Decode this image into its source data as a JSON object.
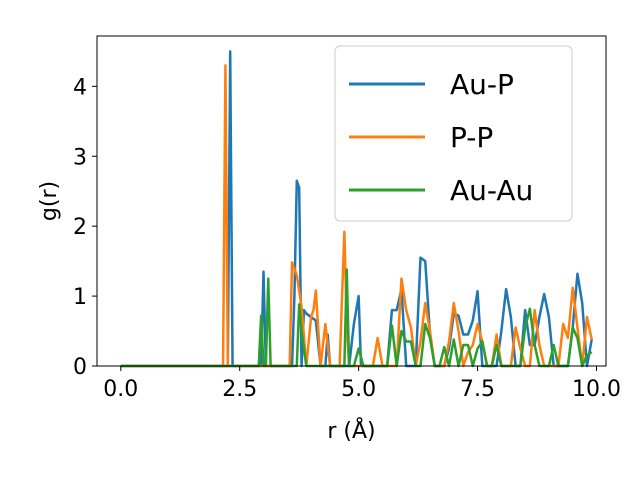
{
  "chart_data": {
    "type": "line",
    "xlabel": "r (Å)",
    "ylabel": "g(r)",
    "xlim": [
      -0.5,
      10.2
    ],
    "ylim": [
      0,
      4.72
    ],
    "xticks": [
      0.0,
      2.5,
      5.0,
      7.5,
      10.0
    ],
    "xtick_labels": [
      "0.0",
      "2.5",
      "5.0",
      "7.5",
      "10.0"
    ],
    "yticks": [
      0,
      1,
      2,
      3,
      4
    ],
    "ytick_labels": [
      "0",
      "1",
      "2",
      "3",
      "4"
    ],
    "grid": false,
    "legend_position": "top-right",
    "series": [
      {
        "name": "Au-P",
        "color": "#1f77b4",
        "x": [
          0.0,
          2.15,
          2.2,
          2.25,
          2.3,
          2.35,
          2.4,
          2.95,
          3.0,
          3.05,
          3.1,
          3.5,
          3.6,
          3.65,
          3.7,
          3.75,
          3.8,
          3.85,
          3.9,
          4.0,
          4.1,
          4.2,
          4.3,
          4.35,
          4.4,
          4.5,
          4.6,
          4.7,
          4.8,
          4.9,
          5.0,
          5.05,
          5.1,
          5.5,
          5.6,
          5.7,
          5.75,
          5.8,
          5.9,
          6.0,
          6.05,
          6.1,
          6.2,
          6.3,
          6.4,
          6.5,
          6.6,
          6.7,
          6.8,
          6.9,
          7.0,
          7.1,
          7.2,
          7.3,
          7.4,
          7.5,
          7.6,
          7.7,
          7.8,
          7.9,
          8.0,
          8.1,
          8.2,
          8.3,
          8.4,
          8.5,
          8.6,
          8.7,
          8.8,
          8.9,
          9.0,
          9.1,
          9.2,
          9.3,
          9.4,
          9.5,
          9.6,
          9.7,
          9.8,
          9.9
        ],
        "y": [
          0.0,
          0.0,
          0.0,
          0.0,
          4.5,
          0.0,
          0.0,
          0.0,
          1.35,
          0.0,
          0.0,
          0.0,
          0.0,
          1.0,
          2.65,
          2.55,
          0.0,
          0.8,
          0.75,
          0.7,
          0.65,
          0.0,
          0.0,
          0.45,
          0.0,
          0.0,
          0.0,
          0.0,
          0.0,
          0.6,
          1.0,
          0.0,
          0.0,
          0.0,
          0.0,
          0.8,
          0.8,
          0.8,
          1.1,
          0.0,
          0.0,
          0.0,
          0.0,
          1.55,
          1.5,
          0.45,
          0.0,
          0.0,
          0.0,
          0.25,
          0.75,
          0.72,
          0.45,
          0.45,
          0.65,
          1.07,
          0.0,
          0.0,
          0.0,
          0.0,
          0.5,
          1.1,
          0.7,
          0.0,
          0.0,
          0.8,
          0.3,
          0.3,
          0.7,
          1.03,
          0.7,
          0.0,
          0.0,
          0.0,
          0.0,
          0.55,
          1.32,
          0.9,
          0.0,
          0.38
        ]
      },
      {
        "name": "P-P",
        "color": "#ff7f0e",
        "x": [
          0.0,
          2.1,
          2.15,
          2.2,
          2.25,
          2.3,
          3.3,
          3.4,
          3.5,
          3.55,
          3.6,
          3.7,
          3.8,
          3.9,
          4.0,
          4.05,
          4.1,
          4.2,
          4.3,
          4.4,
          4.6,
          4.7,
          4.75,
          4.8,
          4.9,
          5.0,
          5.2,
          5.3,
          5.4,
          5.5,
          5.6,
          5.7,
          5.8,
          5.9,
          6.0,
          6.1,
          6.2,
          6.3,
          6.4,
          6.5,
          6.6,
          6.7,
          6.8,
          6.9,
          7.0,
          7.1,
          7.2,
          7.3,
          7.4,
          7.5,
          7.6,
          7.7,
          7.8,
          7.9,
          8.0,
          8.1,
          8.2,
          8.3,
          8.4,
          8.5,
          8.6,
          8.7,
          8.8,
          8.9,
          9.0,
          9.1,
          9.2,
          9.3,
          9.4,
          9.5,
          9.6,
          9.7,
          9.8,
          9.9
        ],
        "y": [
          0.0,
          0.0,
          0.0,
          4.3,
          0.0,
          0.0,
          0.0,
          0.0,
          0.0,
          0.0,
          1.48,
          1.3,
          0.85,
          0.0,
          0.7,
          0.8,
          1.08,
          0.0,
          0.6,
          0.0,
          0.0,
          1.92,
          0.6,
          0.0,
          0.0,
          0.0,
          0.0,
          0.0,
          0.4,
          0.0,
          0.0,
          0.0,
          0.0,
          1.25,
          0.8,
          0.55,
          0.0,
          0.35,
          0.9,
          0.5,
          0.0,
          0.0,
          0.0,
          0.35,
          0.9,
          0.5,
          0.0,
          0.2,
          0.3,
          0.6,
          0.35,
          0.0,
          0.0,
          0.45,
          0.0,
          0.0,
          0.0,
          0.55,
          0.25,
          0.0,
          0.0,
          0.8,
          0.3,
          0.0,
          0.0,
          0.0,
          0.0,
          0.6,
          0.4,
          1.12,
          0.55,
          0.0,
          0.7,
          0.38
        ]
      },
      {
        "name": "Au-Au",
        "color": "#2ca02c",
        "x": [
          0.0,
          2.75,
          2.8,
          2.85,
          2.9,
          2.95,
          3.0,
          3.05,
          3.1,
          3.15,
          3.2,
          3.3,
          3.4,
          3.5,
          3.6,
          3.7,
          3.75,
          3.8,
          3.9,
          4.0,
          4.1,
          4.2,
          4.3,
          4.4,
          4.5,
          4.6,
          4.7,
          4.75,
          4.8,
          4.9,
          5.0,
          5.1,
          5.2,
          5.3,
          5.4,
          5.5,
          5.6,
          5.7,
          5.8,
          5.9,
          6.0,
          6.1,
          6.2,
          6.3,
          6.4,
          6.5,
          6.6,
          6.7,
          6.8,
          6.9,
          7.0,
          7.1,
          7.2,
          7.3,
          7.4,
          7.5,
          7.6,
          7.7,
          7.8,
          7.9,
          8.0,
          8.1,
          8.2,
          8.3,
          8.4,
          8.5,
          8.6,
          8.7,
          8.8,
          8.9,
          9.0,
          9.1,
          9.2,
          9.3,
          9.4,
          9.5,
          9.6,
          9.7,
          9.8,
          9.9
        ],
        "y": [
          0.0,
          0.0,
          0.0,
          0.0,
          0.0,
          0.72,
          0.0,
          0.0,
          1.25,
          0.0,
          0.0,
          0.0,
          0.0,
          0.0,
          0.0,
          0.0,
          0.88,
          0.5,
          0.0,
          0.0,
          0.0,
          0.0,
          0.0,
          0.0,
          0.0,
          0.0,
          0.0,
          1.38,
          0.0,
          0.0,
          0.25,
          0.0,
          0.0,
          0.0,
          0.0,
          0.0,
          0.0,
          0.58,
          0.0,
          0.5,
          0.35,
          0.35,
          0.0,
          0.0,
          0.6,
          0.4,
          0.0,
          0.0,
          0.27,
          0.0,
          0.38,
          0.0,
          0.3,
          0.3,
          0.0,
          0.25,
          0.35,
          0.0,
          0.0,
          0.3,
          0.0,
          0.0,
          0.0,
          0.0,
          0.0,
          0.55,
          0.82,
          0.3,
          0.0,
          0.0,
          0.0,
          0.3,
          0.0,
          0.0,
          0.0,
          0.55,
          0.4,
          0.0,
          0.15,
          0.2
        ]
      }
    ]
  }
}
